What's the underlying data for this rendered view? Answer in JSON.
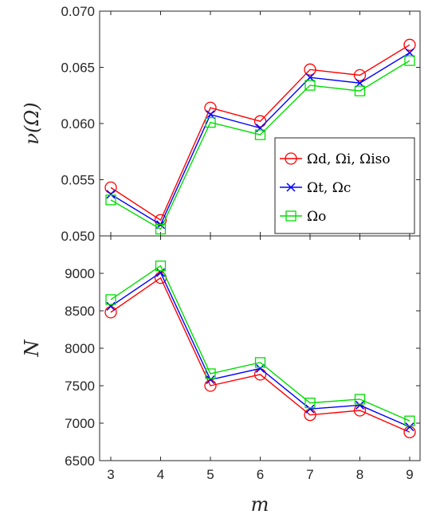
{
  "chart_data": [
    {
      "type": "line",
      "title": "",
      "xlabel": "",
      "ylabel": "ν(Ω)",
      "x": [
        3,
        4,
        5,
        6,
        7,
        8,
        9
      ],
      "xlim": [
        3,
        9
      ],
      "ylim": [
        0.05,
        0.07
      ],
      "yticks": [
        "0.050",
        "0.055",
        "0.060",
        "0.065",
        "0.070"
      ],
      "xticks": [],
      "grid": false,
      "legend_position": "center-right",
      "series": [
        {
          "name": "Ωd, Ωi, Ωiso",
          "color": "#ff0000",
          "marker": "circle",
          "values": [
            0.0543,
            0.0514,
            0.0614,
            0.0602,
            0.0648,
            0.0643,
            0.067
          ]
        },
        {
          "name": "Ωt, Ωc",
          "color": "#0000ff",
          "marker": "x",
          "values": [
            0.0537,
            0.051,
            0.0608,
            0.0596,
            0.0641,
            0.0636,
            0.0663
          ]
        },
        {
          "name": "Ωo",
          "color": "#00dd00",
          "marker": "square",
          "values": [
            0.0532,
            0.0506,
            0.0601,
            0.059,
            0.0634,
            0.0629,
            0.0656
          ]
        }
      ]
    },
    {
      "type": "line",
      "title": "",
      "xlabel": "m",
      "ylabel": "N",
      "x": [
        3,
        4,
        5,
        6,
        7,
        8,
        9
      ],
      "xlim": [
        3,
        9
      ],
      "ylim": [
        6500,
        9500
      ],
      "yticks": [
        "6500",
        "7000",
        "7500",
        "8000",
        "8500",
        "9000"
      ],
      "xticks": [
        "3",
        "4",
        "5",
        "6",
        "7",
        "8",
        "9"
      ],
      "grid": false,
      "series": [
        {
          "color": "#ff0000",
          "marker": "circle",
          "values": [
            8480,
            8940,
            7500,
            7650,
            7110,
            7170,
            6880
          ]
        },
        {
          "color": "#0000ff",
          "marker": "x",
          "values": [
            8560,
            9010,
            7580,
            7730,
            7190,
            7240,
            6950
          ]
        },
        {
          "color": "#00dd00",
          "marker": "square",
          "values": [
            8650,
            9100,
            7660,
            7810,
            7270,
            7320,
            7030
          ]
        }
      ]
    }
  ]
}
